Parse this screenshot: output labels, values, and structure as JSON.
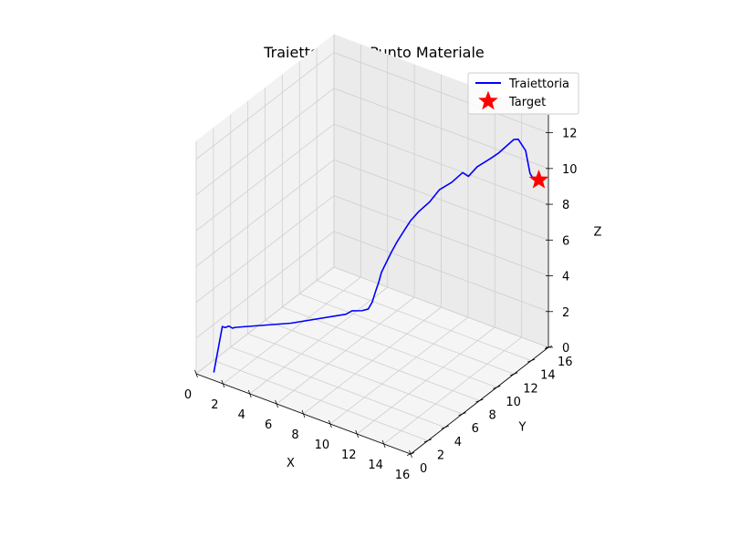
{
  "chart_data": {
    "type": "line",
    "projection": "3d",
    "title": "Traiettoria del Punto Materiale",
    "xlabel": "X",
    "ylabel": "Y",
    "zlabel": "Z",
    "xlim": [
      0,
      16
    ],
    "ylim": [
      0,
      16
    ],
    "zlim": [
      0,
      13
    ],
    "xticks": [
      "0",
      "2",
      "4",
      "6",
      "8",
      "10",
      "12",
      "14",
      "16"
    ],
    "yticks": [
      "0",
      "2",
      "4",
      "6",
      "8",
      "10",
      "12",
      "14",
      "16"
    ],
    "zticks": [
      "0",
      "2",
      "4",
      "6",
      "8",
      "10",
      "12"
    ],
    "grid": true,
    "legend_position": "top-right",
    "series": [
      {
        "name": "Traiettoria",
        "kind": "line",
        "color": "#0000ff",
        "points": [
          [
            0.8,
            0.8,
            0
          ],
          [
            1.5,
            0.7,
            2.8
          ],
          [
            1.6,
            0.9,
            2.7
          ],
          [
            1.8,
            1.0,
            2.8
          ],
          [
            2.0,
            1.1,
            2.7
          ],
          [
            2.2,
            1.1,
            2.8
          ],
          [
            4.5,
            4.0,
            2.6
          ],
          [
            6.8,
            6.8,
            2.7
          ],
          [
            7.0,
            7.2,
            2.8
          ],
          [
            7.5,
            7.6,
            2.8
          ],
          [
            7.7,
            8.0,
            2.8
          ],
          [
            7.8,
            8.3,
            3.1
          ],
          [
            7.9,
            8.5,
            3.6
          ],
          [
            8.1,
            8.6,
            4.2
          ],
          [
            8.3,
            8.6,
            4.8
          ],
          [
            8.6,
            8.7,
            5.4
          ],
          [
            8.9,
            8.8,
            6.0
          ],
          [
            9.2,
            9.0,
            6.6
          ],
          [
            9.6,
            9.3,
            7.3
          ],
          [
            9.9,
            9.5,
            7.8
          ],
          [
            10.3,
            9.8,
            8.3
          ],
          [
            10.8,
            10.3,
            8.8
          ],
          [
            11.2,
            10.8,
            9.4
          ],
          [
            11.8,
            11.3,
            9.8
          ],
          [
            12.3,
            11.8,
            10.3
          ],
          [
            12.6,
            12.0,
            10.1
          ],
          [
            13.0,
            12.4,
            10.6
          ],
          [
            13.3,
            12.7,
            10.8
          ],
          [
            13.6,
            13.0,
            11.0
          ],
          [
            14.0,
            13.3,
            11.3
          ],
          [
            14.4,
            13.7,
            11.7
          ],
          [
            14.7,
            14.0,
            12.0
          ],
          [
            14.9,
            14.2,
            12.0
          ],
          [
            15.2,
            14.6,
            11.3
          ],
          [
            15.4,
            14.8,
            10.0
          ],
          [
            15.6,
            15.0,
            9.6
          ]
        ]
      },
      {
        "name": "Target",
        "kind": "marker",
        "marker": "star",
        "color": "#ff0000",
        "points": [
          [
            15.8,
            15.2,
            9.6
          ]
        ]
      }
    ]
  }
}
